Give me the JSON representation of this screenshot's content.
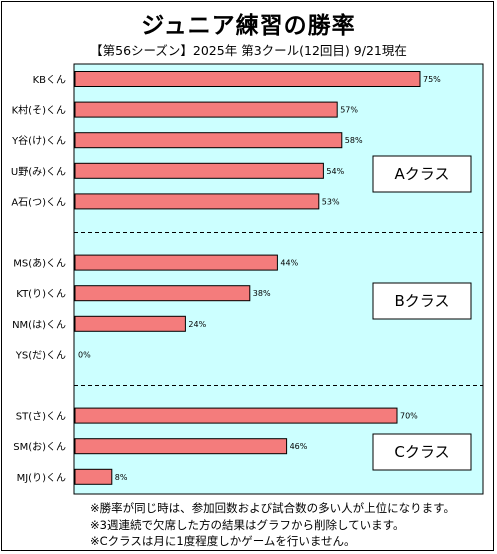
{
  "chart_data": {
    "type": "bar",
    "orientation": "horizontal",
    "title": "ジュニア練習の勝率",
    "subtitle": "【第56シーズン】2025年 第3クール(12回目) 9/21現在",
    "categories": [
      "KBくん",
      "K村(そ)くん",
      "Y谷(け)くん",
      "U野(み)くん",
      "A石(つ)くん",
      "MS(あ)くん",
      "KT(り)くん",
      "NM(は)くん",
      "YS(だ)くん",
      "ST(さ)くん",
      "SM(お)くん",
      "MJ(り)くん"
    ],
    "values": [
      75,
      57,
      58,
      54,
      53,
      44,
      38,
      24,
      0,
      70,
      46,
      8
    ],
    "value_labels": [
      "75%",
      "57%",
      "58%",
      "54%",
      "53%",
      "44%",
      "38%",
      "24%",
      "0%",
      "70%",
      "46%",
      "8%"
    ],
    "groups": [
      {
        "label": "Aクラス",
        "members": 5
      },
      {
        "label": "Bクラス",
        "members": 4
      },
      {
        "label": "Cクラス",
        "members": 3
      }
    ],
    "xlim": [
      0,
      100
    ],
    "grid": false,
    "colors": {
      "bar": "#f47c7c",
      "bar_stroke": "#000000",
      "plot_bg": "#ccffff",
      "label_box": "#ffffff"
    }
  },
  "notes": [
    "※勝率が同じ時は、参加回数および試合数の多い人が上位になります。",
    "※3週連続で欠席した方の結果はグラフから削除しています。",
    "※Cクラスは月に1度程度しかゲームを行いません。"
  ]
}
